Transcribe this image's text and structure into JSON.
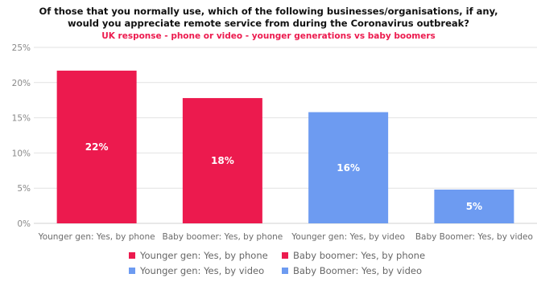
{
  "chart_data": {
    "type": "bar",
    "title_line1": "Of those that you normally use, which of the following businesses/organisations, if any,",
    "title_line2": "would you appreciate remote service from during the Coronavirus outbreak?",
    "subtitle": "UK response - phone or video - younger generations vs baby boomers",
    "categories": [
      "Younger gen: Yes, by phone",
      "Baby boomer: Yes, by phone",
      "Younger gen: Yes, by video",
      "Baby Boomer: Yes, by video"
    ],
    "values": [
      21.7,
      17.8,
      15.8,
      4.8
    ],
    "data_labels": [
      "22%",
      "18%",
      "16%",
      "5%"
    ],
    "colors": [
      "#ec1a4e",
      "#ec1a4e",
      "#6d9bf1",
      "#6d9bf1"
    ],
    "ylim": [
      0,
      25
    ],
    "yticks": [
      "0%",
      "5%",
      "10%",
      "15%",
      "20%",
      "25%"
    ],
    "grid": true,
    "legend_position": "bottom",
    "legend": [
      {
        "label": "Younger gen: Yes, by phone",
        "color": "#ec1a4e"
      },
      {
        "label": "Baby boomer: Yes, by phone",
        "color": "#ec1a4e"
      },
      {
        "label": "Younger gen: Yes, by video",
        "color": "#6d9bf1"
      },
      {
        "label": "Baby Boomer: Yes, by video",
        "color": "#6d9bf1"
      }
    ]
  }
}
